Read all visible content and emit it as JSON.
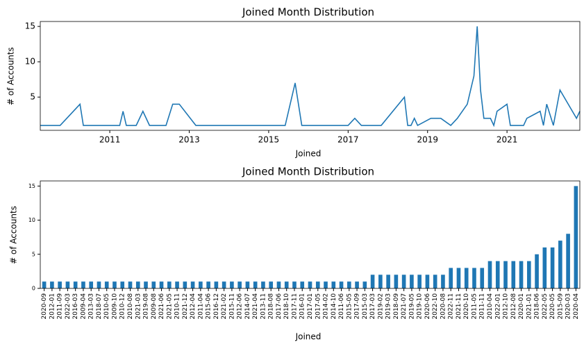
{
  "chart_data": [
    {
      "type": "line",
      "title": "Joined Month Distribution",
      "xlabel": "Joined",
      "ylabel": "# of Accounts",
      "color": "#1f77b4",
      "x": [
        "2009-04",
        "2009-08",
        "2009-10",
        "2010-04",
        "2010-05",
        "2010-08",
        "2010-11",
        "2010-12",
        "2011-04",
        "2011-05",
        "2011-06",
        "2011-09",
        "2011-11",
        "2012-01",
        "2012-04",
        "2012-06",
        "2012-08",
        "2012-10",
        "2013-03",
        "2013-11",
        "2014-02",
        "2014-07",
        "2014-10",
        "2015-03",
        "2015-05",
        "2015-06",
        "2015-09",
        "2015-11",
        "2016-01",
        "2016-03",
        "2016-12",
        "2017-01",
        "2017-03",
        "2017-05",
        "2017-06",
        "2017-09",
        "2017-11",
        "2018-06",
        "2018-07",
        "2018-08",
        "2018-09",
        "2018-10",
        "2019-02",
        "2019-03",
        "2019-05",
        "2019-08",
        "2019-10",
        "2020-01",
        "2020-03",
        "2020-04",
        "2020-05",
        "2020-06",
        "2020-08",
        "2020-09",
        "2020-10",
        "2021-01",
        "2021-02",
        "2021-03",
        "2021-04",
        "2021-05",
        "2021-06",
        "2021-07",
        "2021-11",
        "2021-12",
        "2022-01",
        "2022-03",
        "2022-05",
        "2022-10",
        "2022-11"
      ],
      "values": [
        1,
        1,
        1,
        4,
        1,
        1,
        1,
        1,
        1,
        3,
        1,
        1,
        3,
        1,
        1,
        1,
        4,
        4,
        1,
        1,
        1,
        1,
        1,
        1,
        1,
        1,
        7,
        1,
        1,
        1,
        1,
        1,
        2,
        1,
        1,
        1,
        1,
        5,
        1,
        1,
        2,
        1,
        2,
        2,
        2,
        1,
        2,
        4,
        8,
        15,
        6,
        2,
        2,
        1,
        3,
        4,
        1,
        1,
        1,
        1,
        1,
        2,
        3,
        1,
        4,
        1,
        6,
        2,
        3
      ],
      "xlim": [
        "2009-04",
        "2022-11"
      ],
      "xticks": [
        {
          "value": "2011-01",
          "label": "2011"
        },
        {
          "value": "2013-01",
          "label": "2013"
        },
        {
          "value": "2015-01",
          "label": "2015"
        },
        {
          "value": "2017-01",
          "label": "2017"
        },
        {
          "value": "2019-01",
          "label": "2019"
        },
        {
          "value": "2021-01",
          "label": "2021"
        }
      ],
      "ylim": [
        0.3,
        15.7
      ],
      "yticks": [
        5,
        10,
        15
      ]
    },
    {
      "type": "bar",
      "title": "Joined Month Distribution",
      "xlabel": "Joined",
      "ylabel": "# of Accounts",
      "color": "#1f77b4",
      "categories": [
        "2020-09",
        "2012-01",
        "2011-09",
        "2022-03",
        "2016-03",
        "2009-04",
        "2013-03",
        "2018-07",
        "2010-05",
        "2009-10",
        "2010-12",
        "2010-08",
        "2021-03",
        "2019-08",
        "2009-08",
        "2021-06",
        "2021-05",
        "2010-11",
        "2021-12",
        "2012-04",
        "2011-04",
        "2015-06",
        "2016-12",
        "2021-02",
        "2015-11",
        "2012-06",
        "2014-07",
        "2021-04",
        "2013-11",
        "2018-08",
        "2017-06",
        "2018-10",
        "2017-11",
        "2016-01",
        "2017-01",
        "2017-05",
        "2014-02",
        "2014-10",
        "2011-06",
        "2015-05",
        "2017-09",
        "2015-03",
        "2017-03",
        "2019-02",
        "2019-03",
        "2018-09",
        "2021-07",
        "2019-05",
        "2019-10",
        "2020-06",
        "2022-10",
        "2020-08",
        "2022-11",
        "2021-11",
        "2020-10",
        "2011-05",
        "2011-11",
        "2010-04",
        "2022-01",
        "2012-10",
        "2012-08",
        "2020-01",
        "2021-01",
        "2018-06",
        "2022-05",
        "2020-05",
        "2015-09",
        "2020-03",
        "2020-04"
      ],
      "values": [
        1,
        1,
        1,
        1,
        1,
        1,
        1,
        1,
        1,
        1,
        1,
        1,
        1,
        1,
        1,
        1,
        1,
        1,
        1,
        1,
        1,
        1,
        1,
        1,
        1,
        1,
        1,
        1,
        1,
        1,
        1,
        1,
        1,
        1,
        1,
        1,
        1,
        1,
        1,
        1,
        1,
        1,
        2,
        2,
        2,
        2,
        2,
        2,
        2,
        2,
        2,
        2,
        3,
        3,
        3,
        3,
        3,
        4,
        4,
        4,
        4,
        4,
        4,
        5,
        6,
        6,
        7,
        8,
        15
      ],
      "ylim": [
        0,
        15.75
      ],
      "yticks": [
        0,
        5,
        10,
        15
      ]
    }
  ]
}
